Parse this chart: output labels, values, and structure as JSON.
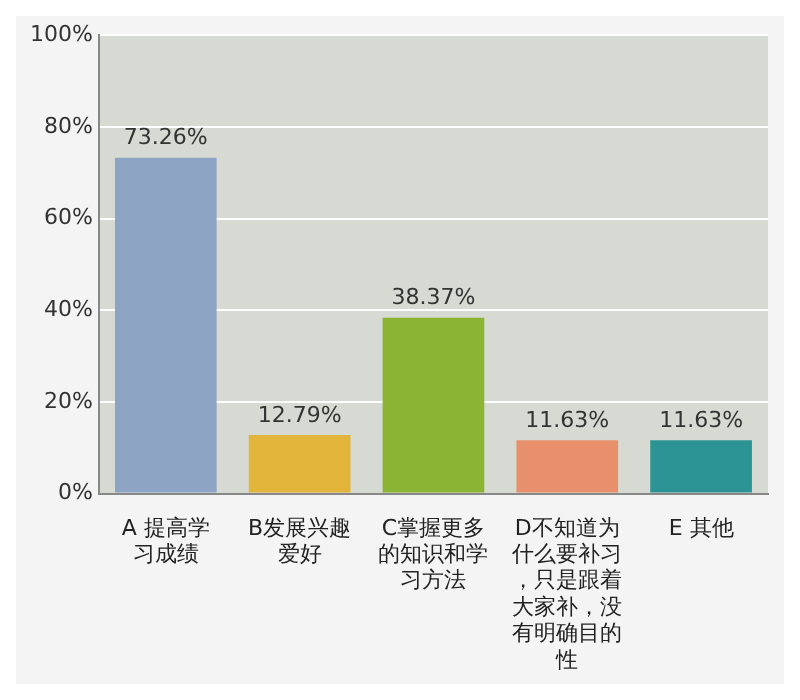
{
  "chart_data": {
    "type": "bar",
    "categories": [
      "A 提高学习成绩",
      "B发展兴趣爱好",
      "C掌握更多的知识和学习方法",
      "D不知道为什么要补习，只是跟着大家补，没有明确目的性",
      "E 其他"
    ],
    "values": [
      73.26,
      12.79,
      38.37,
      11.63,
      11.63
    ],
    "colors": [
      "#8ea4c4",
      "#e2b43a",
      "#8cb434",
      "#e8906c",
      "#2c9494"
    ],
    "value_labels": [
      "73.26%",
      "12.79%",
      "38.37%",
      "11.63%",
      "11.63%"
    ],
    "ylim": [
      0,
      100
    ],
    "yticks": [
      {
        "value": 0,
        "label": "0%"
      },
      {
        "value": 20,
        "label": "20%"
      },
      {
        "value": 40,
        "label": "40%"
      },
      {
        "value": 60,
        "label": "60%"
      },
      {
        "value": 80,
        "label": "80%"
      },
      {
        "value": 100,
        "label": "100%"
      }
    ],
    "grid": "y",
    "legend": false
  }
}
